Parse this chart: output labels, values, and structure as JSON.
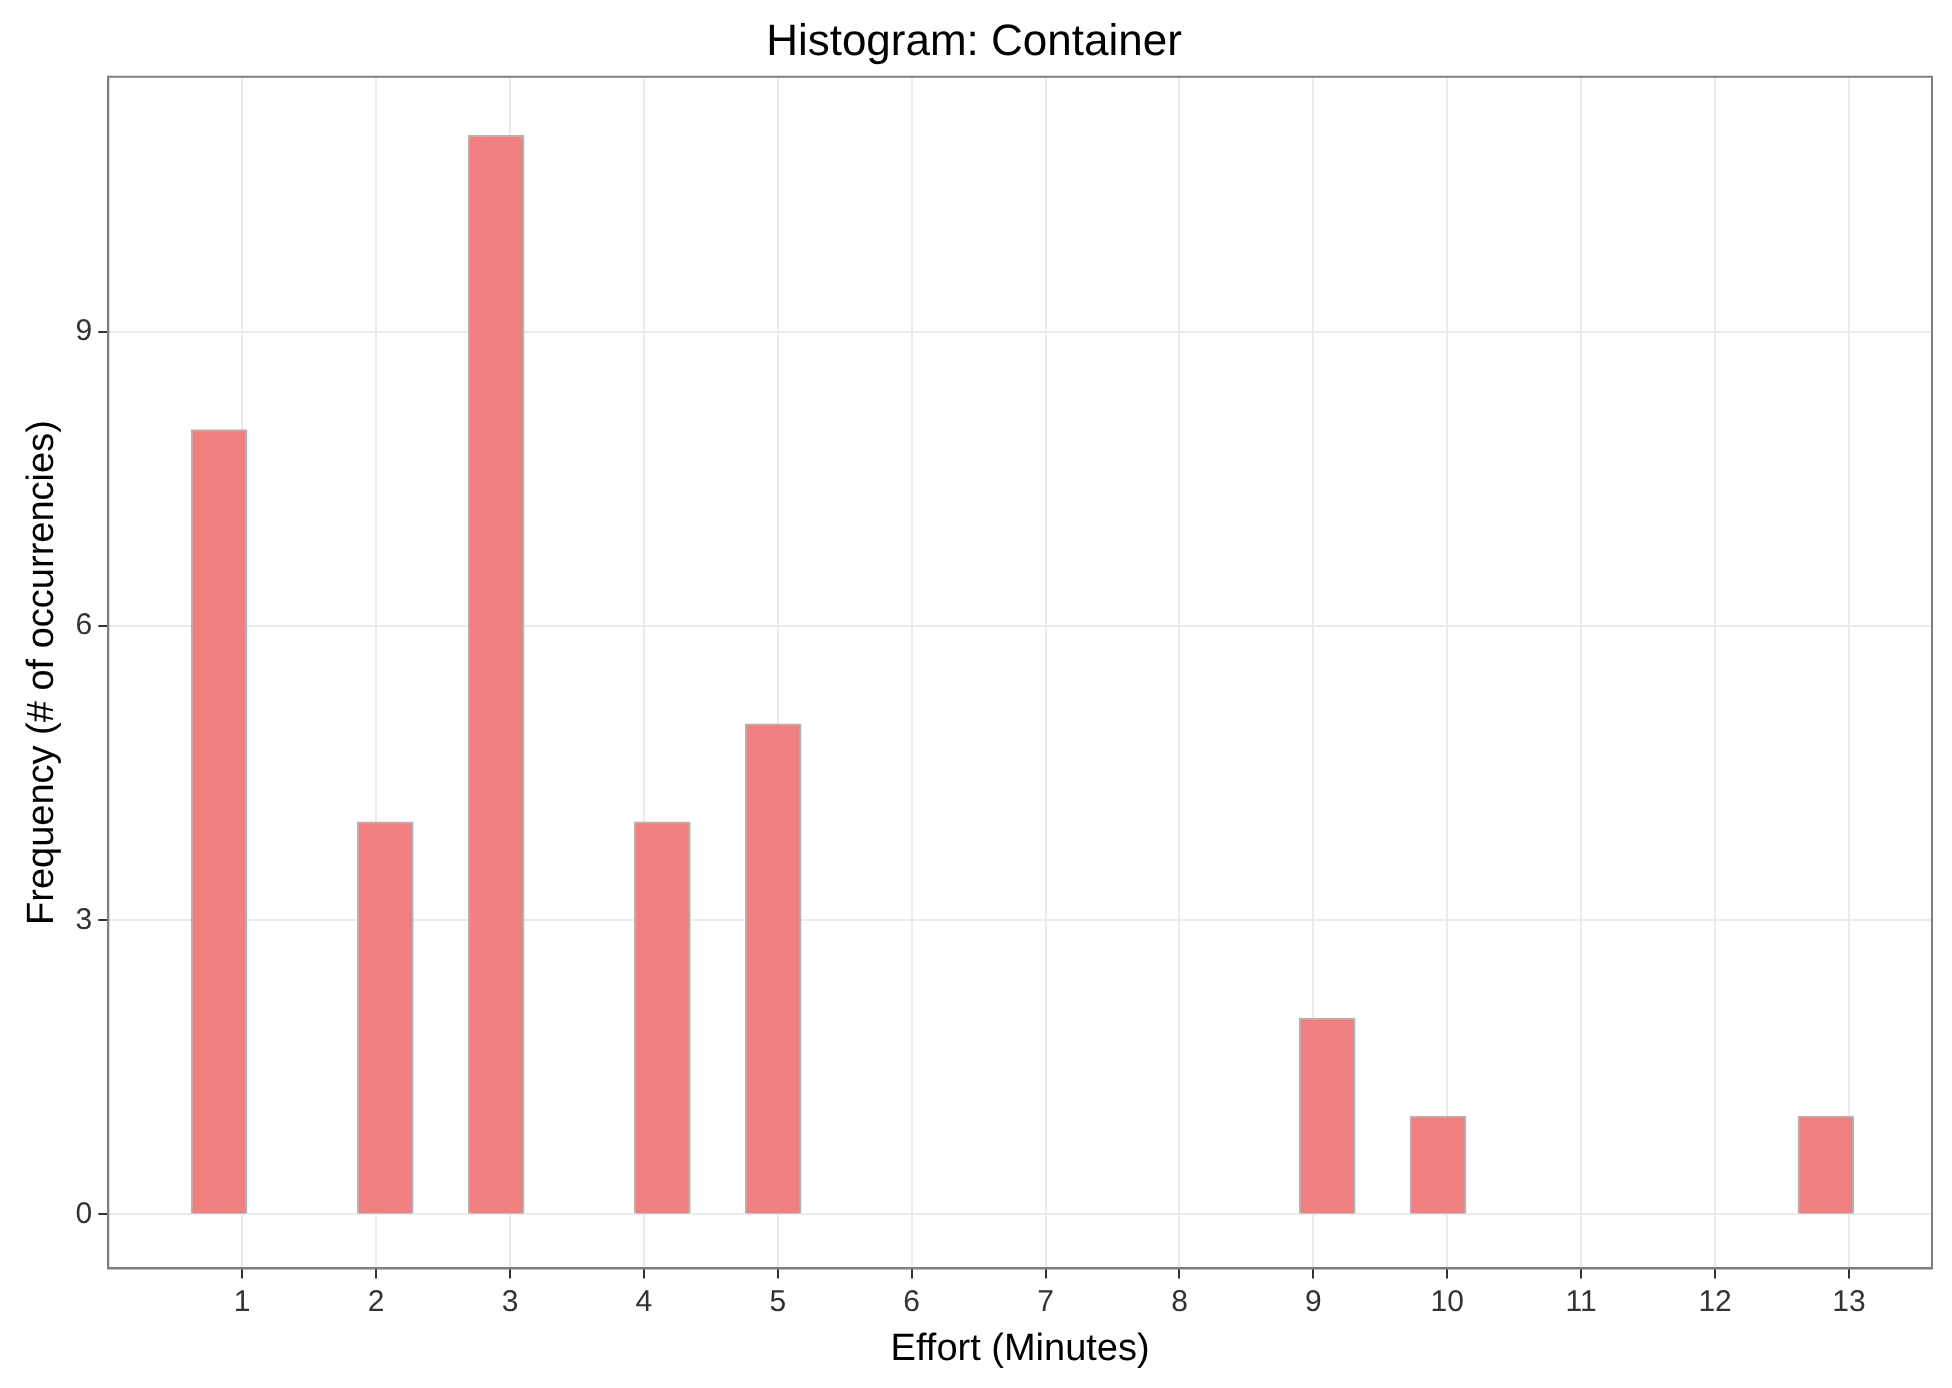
{
  "chart_data": {
    "type": "histogram",
    "title": "Histogram: Container",
    "xlabel": "Effort (Minutes)",
    "ylabel": "Frequency (# of occurrencies)",
    "bins": [
      0.621,
      1.034,
      1.448,
      1.862,
      2.276,
      2.69,
      3.103,
      3.517,
      3.931,
      4.345,
      4.759,
      5.172,
      5.586,
      6,
      6.414,
      6.828,
      7.241,
      7.655,
      8.069,
      8.483,
      8.897,
      9.31,
      9.724,
      10.138,
      10.552,
      10.966,
      11.379,
      11.793,
      12.207,
      12.621,
      13.034
    ],
    "values": [
      8,
      0,
      0,
      4,
      0,
      11,
      0,
      0,
      4,
      0,
      5,
      0,
      0,
      0,
      0,
      0,
      0,
      0,
      0,
      0,
      2,
      0,
      1,
      0,
      0,
      0,
      0,
      0,
      0,
      1
    ],
    "color": "#f08080",
    "xlim": [
      0,
      13.62
    ],
    "xticks": [
      1,
      2,
      3,
      4,
      5,
      6,
      7,
      8,
      9,
      10,
      11,
      12,
      13
    ],
    "ylim": [
      -0.55,
      11.6
    ],
    "yticks": [
      0,
      3,
      6,
      9
    ],
    "grid": true
  }
}
